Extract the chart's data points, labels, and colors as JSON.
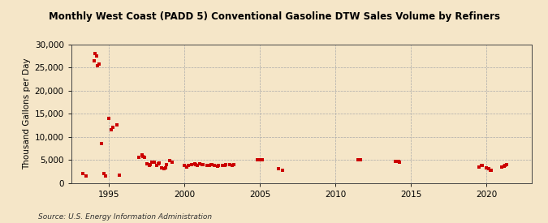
{
  "title": "Monthly West Coast (PADD 5) Conventional Gasoline DTW Sales Volume by Refiners",
  "ylabel": "Thousand Gallons per Day",
  "source": "Source: U.S. Energy Information Administration",
  "background_color": "#f5e6c8",
  "plot_bg_color": "#f5e6c8",
  "point_color": "#cc0000",
  "ylim": [
    0,
    30000
  ],
  "xlim": [
    1992.5,
    2023
  ],
  "yticks": [
    0,
    5000,
    10000,
    15000,
    20000,
    25000,
    30000
  ],
  "xticks": [
    1995,
    2000,
    2005,
    2010,
    2015,
    2020
  ],
  "data": [
    [
      1993.25,
      2000
    ],
    [
      1993.5,
      1500
    ],
    [
      1994.0,
      26500
    ],
    [
      1994.08,
      28000
    ],
    [
      1994.17,
      27500
    ],
    [
      1994.25,
      25500
    ],
    [
      1994.33,
      25700
    ],
    [
      1994.5,
      8500
    ],
    [
      1994.67,
      2000
    ],
    [
      1994.75,
      1500
    ],
    [
      1995.0,
      14000
    ],
    [
      1995.17,
      11500
    ],
    [
      1995.25,
      12000
    ],
    [
      1995.5,
      12500
    ],
    [
      1995.67,
      1700
    ],
    [
      1997.0,
      5500
    ],
    [
      1997.17,
      6000
    ],
    [
      1997.25,
      5800
    ],
    [
      1997.33,
      5500
    ],
    [
      1997.5,
      4200
    ],
    [
      1997.67,
      3800
    ],
    [
      1997.75,
      4000
    ],
    [
      1997.83,
      4500
    ],
    [
      1998.0,
      4500
    ],
    [
      1998.17,
      3800
    ],
    [
      1998.25,
      4200
    ],
    [
      1998.33,
      4300
    ],
    [
      1998.5,
      3200
    ],
    [
      1998.67,
      3000
    ],
    [
      1998.75,
      3300
    ],
    [
      1998.83,
      4000
    ],
    [
      1999.0,
      4800
    ],
    [
      1999.17,
      4500
    ],
    [
      2000.0,
      3800
    ],
    [
      2000.17,
      3500
    ],
    [
      2000.25,
      3700
    ],
    [
      2000.5,
      4000
    ],
    [
      2000.67,
      4200
    ],
    [
      2000.75,
      3900
    ],
    [
      2000.83,
      3800
    ],
    [
      2001.0,
      4100
    ],
    [
      2001.17,
      3900
    ],
    [
      2001.25,
      4000
    ],
    [
      2001.5,
      3800
    ],
    [
      2001.67,
      3700
    ],
    [
      2001.75,
      3900
    ],
    [
      2001.83,
      4000
    ],
    [
      2002.0,
      3800
    ],
    [
      2002.17,
      3600
    ],
    [
      2002.25,
      3700
    ],
    [
      2002.5,
      3800
    ],
    [
      2002.67,
      3700
    ],
    [
      2002.75,
      3900
    ],
    [
      2003.0,
      4000
    ],
    [
      2003.17,
      3800
    ],
    [
      2003.25,
      3900
    ],
    [
      2004.83,
      5000
    ],
    [
      2005.0,
      5100
    ],
    [
      2005.17,
      5000
    ],
    [
      2006.25,
      3000
    ],
    [
      2006.5,
      2800
    ],
    [
      2011.5,
      5000
    ],
    [
      2011.67,
      5100
    ],
    [
      2014.0,
      4700
    ],
    [
      2014.17,
      4600
    ],
    [
      2014.25,
      4500
    ],
    [
      2019.5,
      3500
    ],
    [
      2019.67,
      3700
    ],
    [
      2019.75,
      3800
    ],
    [
      2020.0,
      3200
    ],
    [
      2020.17,
      3000
    ],
    [
      2020.25,
      2800
    ],
    [
      2020.33,
      2700
    ],
    [
      2021.0,
      3500
    ],
    [
      2021.17,
      3600
    ],
    [
      2021.25,
      3700
    ],
    [
      2021.33,
      3900
    ]
  ]
}
